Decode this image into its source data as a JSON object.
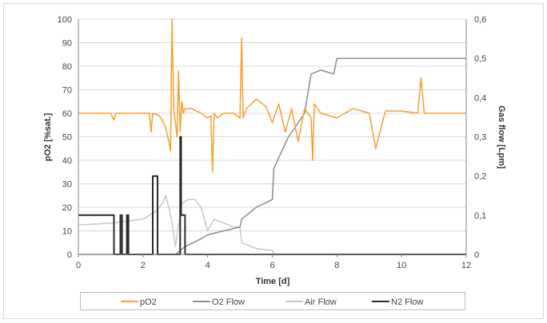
{
  "chart_data": {
    "type": "line",
    "xlabel": "Time   [d]",
    "ylabel_left": "pO2   [%sat.]",
    "ylabel_right": "Gas flow   [Lpm]",
    "xlim": [
      0,
      12
    ],
    "ylim_left": [
      0,
      100
    ],
    "ylim_right": [
      0,
      0.6
    ],
    "x_ticks": [
      "0",
      "2",
      "4",
      "6",
      "8",
      "10",
      "12"
    ],
    "y_left_ticks": [
      "0",
      "10",
      "20",
      "30",
      "40",
      "50",
      "60",
      "70",
      "80",
      "90",
      "100"
    ],
    "y_right_ticks": [
      "0",
      "0,1",
      "0,2",
      "0,3",
      "0,4",
      "0,5",
      "0,6"
    ],
    "grid": "horizontal",
    "legend_position": "bottom",
    "series": [
      {
        "name": "pO2",
        "axis": "left",
        "color": "#F5A030",
        "x": [
          0,
          1.0,
          1.1,
          1.15,
          1.2,
          1.5,
          2.0,
          2.2,
          2.25,
          2.3,
          2.5,
          2.6,
          2.7,
          2.8,
          2.85,
          2.9,
          2.95,
          3.0,
          3.05,
          3.1,
          3.15,
          3.2,
          3.25,
          3.3,
          3.5,
          3.8,
          4.0,
          4.1,
          4.15,
          4.2,
          4.3,
          4.5,
          4.8,
          5.0,
          5.05,
          5.1,
          5.2,
          5.5,
          5.8,
          6.0,
          6.2,
          6.4,
          6.6,
          6.8,
          7.0,
          7.2,
          7.25,
          7.3,
          7.5,
          8.0,
          8.5,
          9.0,
          9.2,
          9.5,
          10.0,
          10.5,
          10.6,
          10.7,
          11.0,
          11.5,
          12.0
        ],
        "y": [
          60,
          60,
          57,
          60,
          60,
          60,
          60,
          60,
          52,
          60,
          59,
          57,
          54,
          48,
          44,
          100,
          62,
          56,
          50,
          78,
          52,
          65,
          60,
          62,
          62,
          60,
          58,
          59,
          35,
          60,
          58,
          60,
          60,
          58,
          92,
          58,
          62,
          66,
          63,
          56,
          64,
          52,
          62,
          48,
          62,
          58,
          40,
          64,
          60,
          58,
          62,
          60,
          45,
          61,
          61,
          60,
          75,
          60,
          60,
          60,
          60
        ]
      },
      {
        "name": "O2 Flow",
        "axis": "right",
        "color": "#8C8C8C",
        "x": [
          0,
          3.0,
          3.3,
          3.8,
          4.0,
          4.5,
          5.0,
          5.05,
          5.5,
          6.0,
          6.05,
          6.5,
          7.0,
          7.2,
          7.5,
          7.9,
          8.0,
          12.0
        ],
        "y": [
          0,
          0,
          0.02,
          0.04,
          0.05,
          0.06,
          0.07,
          0.09,
          0.12,
          0.14,
          0.22,
          0.3,
          0.36,
          0.46,
          0.47,
          0.46,
          0.5,
          0.5
        ]
      },
      {
        "name": "Air Flow",
        "axis": "right",
        "color": "#C8C8C8",
        "x": [
          0,
          1.0,
          2.0,
          2.4,
          2.6,
          2.7,
          2.8,
          2.9,
          3.0,
          3.2,
          3.4,
          3.6,
          3.8,
          4.0,
          4.2,
          4.5,
          4.8,
          5.0,
          5.05,
          5.5,
          6.0,
          6.05,
          12.0
        ],
        "y": [
          0.075,
          0.08,
          0.09,
          0.11,
          0.13,
          0.15,
          0.12,
          0.08,
          0.02,
          0.13,
          0.14,
          0.14,
          0.12,
          0.06,
          0.09,
          0.08,
          0.07,
          0.07,
          0.03,
          0.015,
          0.01,
          0,
          0
        ]
      },
      {
        "name": "N2 Flow",
        "axis": "right",
        "color": "#2B2B2B",
        "x": [
          0,
          1.1,
          1.1,
          1.3,
          1.3,
          1.35,
          1.35,
          1.5,
          1.5,
          1.55,
          1.55,
          1.65,
          1.65,
          2.3,
          2.3,
          2.45,
          2.45,
          3.15,
          3.15,
          3.18,
          3.18,
          3.3,
          3.3,
          12.0
        ],
        "y": [
          0.1,
          0.1,
          0,
          0,
          0.1,
          0.1,
          0,
          0,
          0.1,
          0.1,
          0,
          0,
          0,
          0,
          0.2,
          0.2,
          0,
          0,
          0.3,
          0.3,
          0.1,
          0.1,
          0,
          0
        ]
      }
    ]
  }
}
